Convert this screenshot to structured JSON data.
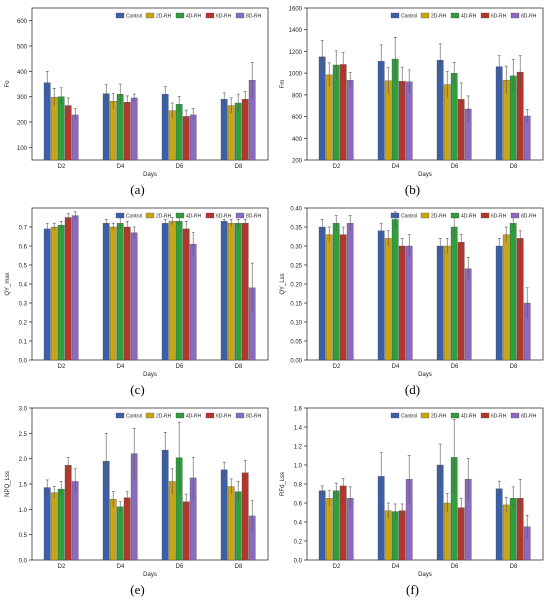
{
  "series_names": [
    "Control",
    "2D-RH",
    "4D-RH",
    "6D-RH",
    "8D-RH"
  ],
  "series_colors": [
    "#3c5fa8",
    "#c8a417",
    "#2f9e3c",
    "#b3372c",
    "#8a6bc0"
  ],
  "chart_data": [
    {
      "type": "bar",
      "caption": "(a)",
      "ylabel": "Fo",
      "xlabel": "Days",
      "categories": [
        "D2",
        "D4",
        "D6",
        "D8"
      ],
      "ylim": [
        50,
        650
      ],
      "yticks": [
        100,
        200,
        300,
        400,
        500,
        600
      ],
      "series": [
        {
          "name": "Control",
          "values": [
            355,
            312,
            310,
            290
          ],
          "errors": [
            45,
            35,
            30,
            25
          ]
        },
        {
          "name": "2D-RH",
          "values": [
            298,
            282,
            245,
            265
          ],
          "errors": [
            35,
            30,
            30,
            30
          ]
        },
        {
          "name": "4D-RH",
          "values": [
            300,
            310,
            270,
            275
          ],
          "errors": [
            35,
            40,
            30,
            35
          ]
        },
        {
          "name": "6D-RH",
          "values": [
            265,
            278,
            222,
            290
          ],
          "errors": [
            30,
            25,
            25,
            30
          ]
        },
        {
          "name": "8D-RH",
          "values": [
            228,
            295,
            228,
            365
          ],
          "errors": [
            25,
            15,
            25,
            70
          ]
        }
      ]
    },
    {
      "type": "bar",
      "caption": "(b)",
      "ylabel": "Fm",
      "xlabel": "Days",
      "categories": [
        "D2",
        "D4",
        "D6",
        "D8"
      ],
      "ylim": [
        200,
        1600
      ],
      "yticks": [
        200,
        400,
        600,
        800,
        1000,
        1200,
        1400,
        1600
      ],
      "series": [
        {
          "name": "Control",
          "values": [
            1150,
            1110,
            1120,
            1060
          ],
          "errors": [
            150,
            150,
            150,
            100
          ]
        },
        {
          "name": "2D-RH",
          "values": [
            985,
            930,
            895,
            935
          ],
          "errors": [
            110,
            120,
            120,
            130
          ]
        },
        {
          "name": "4D-RH",
          "values": [
            1075,
            1130,
            1000,
            975
          ],
          "errors": [
            130,
            200,
            100,
            150
          ]
        },
        {
          "name": "6D-RH",
          "values": [
            1080,
            925,
            760,
            1010
          ],
          "errors": [
            110,
            130,
            150,
            150
          ]
        },
        {
          "name": "8D-RH",
          "values": [
            935,
            920,
            670,
            605
          ],
          "errors": [
            70,
            110,
            120,
            60
          ]
        }
      ]
    },
    {
      "type": "bar",
      "caption": "(c)",
      "ylabel": "QY_max",
      "xlabel": "Days",
      "categories": [
        "D2",
        "D4",
        "D6",
        "D8"
      ],
      "ylim": [
        0,
        0.8
      ],
      "yticks": [
        0,
        0.1,
        0.2,
        0.3,
        0.4,
        0.5,
        0.6,
        0.7
      ],
      "series": [
        {
          "name": "Control",
          "values": [
            0.69,
            0.72,
            0.72,
            0.73
          ],
          "errors": [
            0.03,
            0.02,
            0.02,
            0.01
          ]
        },
        {
          "name": "2D-RH",
          "values": [
            0.7,
            0.7,
            0.73,
            0.72
          ],
          "errors": [
            0.02,
            0.02,
            0.02,
            0.02
          ]
        },
        {
          "name": "4D-RH",
          "values": [
            0.71,
            0.72,
            0.73,
            0.72
          ],
          "errors": [
            0.02,
            0.03,
            0.02,
            0.02
          ]
        },
        {
          "name": "6D-RH",
          "values": [
            0.75,
            0.7,
            0.69,
            0.72
          ],
          "errors": [
            0.02,
            0.03,
            0.04,
            0.02
          ]
        },
        {
          "name": "8D-RH",
          "values": [
            0.76,
            0.67,
            0.61,
            0.38
          ],
          "errors": [
            0.02,
            0.03,
            0.06,
            0.13
          ]
        }
      ]
    },
    {
      "type": "bar",
      "caption": "(d)",
      "ylabel": "QY_Lss",
      "xlabel": "Days",
      "categories": [
        "D2",
        "D4",
        "D6",
        "D8"
      ],
      "ylim": [
        0,
        0.4
      ],
      "yticks": [
        0,
        0.05,
        0.1,
        0.15,
        0.2,
        0.25,
        0.3,
        0.35,
        0.4
      ],
      "series": [
        {
          "name": "Control",
          "values": [
            0.35,
            0.34,
            0.3,
            0.3
          ],
          "errors": [
            0.02,
            0.02,
            0.02,
            0.02
          ]
        },
        {
          "name": "2D-RH",
          "values": [
            0.33,
            0.32,
            0.3,
            0.33
          ],
          "errors": [
            0.02,
            0.02,
            0.02,
            0.02
          ]
        },
        {
          "name": "4D-RH",
          "values": [
            0.36,
            0.37,
            0.35,
            0.36
          ],
          "errors": [
            0.02,
            0.02,
            0.03,
            0.02
          ]
        },
        {
          "name": "6D-RH",
          "values": [
            0.33,
            0.3,
            0.31,
            0.32
          ],
          "errors": [
            0.02,
            0.02,
            0.02,
            0.02
          ]
        },
        {
          "name": "8D-RH",
          "values": [
            0.36,
            0.3,
            0.24,
            0.15
          ],
          "errors": [
            0.02,
            0.03,
            0.03,
            0.04
          ]
        }
      ]
    },
    {
      "type": "bar",
      "caption": "(e)",
      "ylabel": "NPQ_Lss",
      "xlabel": "Days",
      "categories": [
        "D2",
        "D4",
        "D6",
        "D8"
      ],
      "ylim": [
        0,
        3.0
      ],
      "yticks": [
        0,
        0.5,
        1.0,
        1.5,
        2.0,
        2.5,
        3.0
      ],
      "series": [
        {
          "name": "Control",
          "values": [
            1.43,
            1.95,
            2.17,
            1.78
          ],
          "errors": [
            0.15,
            0.55,
            0.35,
            0.15
          ]
        },
        {
          "name": "2D-RH",
          "values": [
            1.33,
            1.2,
            1.55,
            1.45
          ],
          "errors": [
            0.12,
            0.15,
            0.25,
            0.15
          ]
        },
        {
          "name": "4D-RH",
          "values": [
            1.4,
            1.05,
            2.02,
            1.35
          ],
          "errors": [
            0.15,
            0.1,
            0.7,
            0.2
          ]
        },
        {
          "name": "6D-RH",
          "values": [
            1.87,
            1.23,
            1.15,
            1.72
          ],
          "errors": [
            0.15,
            0.12,
            0.15,
            0.25
          ]
        },
        {
          "name": "8D-RH",
          "values": [
            1.55,
            2.1,
            1.62,
            0.87
          ],
          "errors": [
            0.25,
            0.5,
            0.4,
            0.3
          ]
        }
      ]
    },
    {
      "type": "bar",
      "caption": "(f)",
      "ylabel": "RFd_Lss",
      "xlabel": "Days",
      "categories": [
        "D2",
        "D4",
        "D6",
        "D8"
      ],
      "ylim": [
        0,
        1.6
      ],
      "yticks": [
        0,
        0.2,
        0.4,
        0.6,
        0.8,
        1.0,
        1.2,
        1.4,
        1.6
      ],
      "series": [
        {
          "name": "Control",
          "values": [
            0.73,
            0.88,
            1.0,
            0.75
          ],
          "errors": [
            0.05,
            0.25,
            0.22,
            0.08
          ]
        },
        {
          "name": "2D-RH",
          "values": [
            0.65,
            0.52,
            0.6,
            0.58
          ],
          "errors": [
            0.08,
            0.08,
            0.1,
            0.08
          ]
        },
        {
          "name": "4D-RH",
          "values": [
            0.73,
            0.51,
            1.08,
            0.65
          ],
          "errors": [
            0.08,
            0.08,
            0.4,
            0.12
          ]
        },
        {
          "name": "6D-RH",
          "values": [
            0.78,
            0.52,
            0.55,
            0.65
          ],
          "errors": [
            0.08,
            0.07,
            0.1,
            0.2
          ]
        },
        {
          "name": "8D-RH",
          "values": [
            0.65,
            0.85,
            0.85,
            0.35
          ],
          "errors": [
            0.12,
            0.25,
            0.22,
            0.12
          ]
        }
      ]
    }
  ]
}
